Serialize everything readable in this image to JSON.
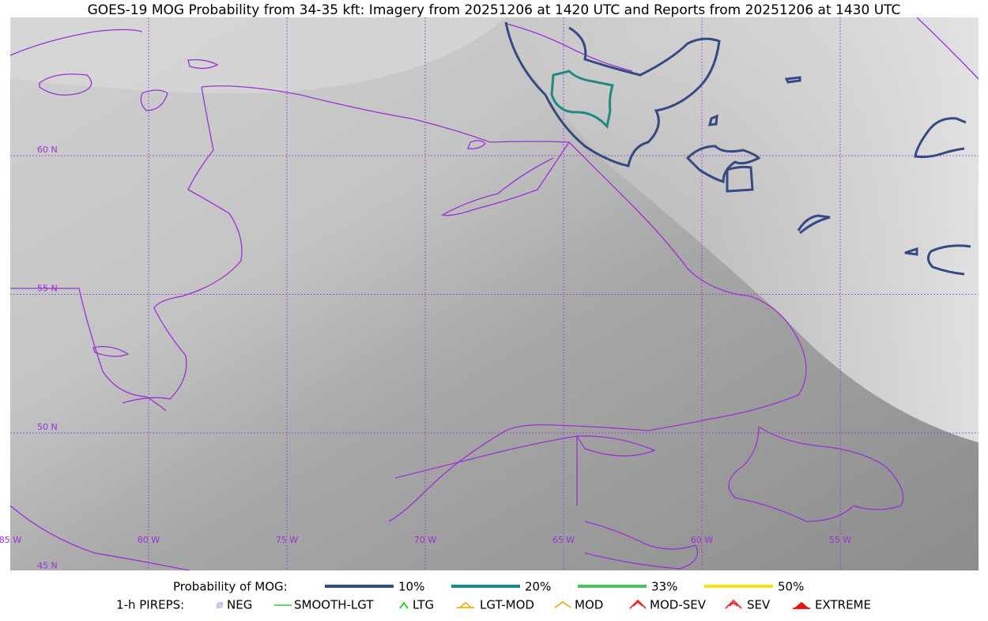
{
  "title": "GOES-19 MOG Probability from 34-35 kft: Imagery from 20251206 at 1420 UTC and Reports from 20251206 at 1430 UTC",
  "longitude_labels": [
    "85 W",
    "80 W",
    "75 W",
    "70 W",
    "65 W",
    "60 W",
    "55 W"
  ],
  "latitude_labels": [
    "60 N",
    "55 N",
    "50 N",
    "45 N"
  ],
  "probability_legend": {
    "title": "Probability of MOG:",
    "items": [
      {
        "label": "10%",
        "color": "#354a82"
      },
      {
        "label": "20%",
        "color": "#1f8a84"
      },
      {
        "label": "33%",
        "color": "#4cc25a"
      },
      {
        "label": "50%",
        "color": "#f2e21a"
      }
    ]
  },
  "pirep_legend": {
    "title": "1-h PIREPS:",
    "items": [
      {
        "label": "NEG",
        "color": "#b8b8f0"
      },
      {
        "label": "SMOOTH-LGT",
        "color": "#2ecc40"
      },
      {
        "label": "LTG",
        "color": "#19d019"
      },
      {
        "label": "LGT-MOD",
        "color": "#f0b020"
      },
      {
        "label": "MOD",
        "color": "#f0b020"
      },
      {
        "label": "MOD-SEV",
        "color": "#e83030"
      },
      {
        "label": "SEV",
        "color": "#e83030"
      },
      {
        "label": "EXTREME",
        "color": "#e81010"
      }
    ]
  }
}
